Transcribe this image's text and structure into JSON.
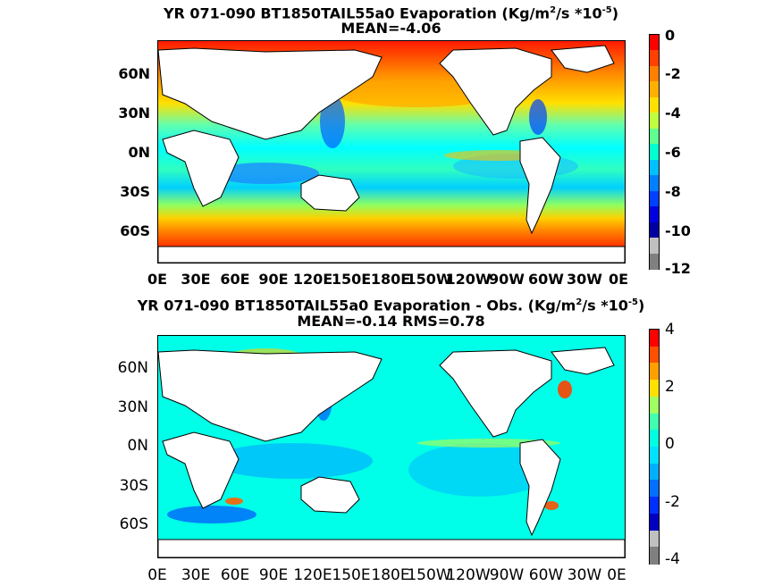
{
  "top": {
    "title_line1_pre": "YR 071-090 BT1850TAIL55a0  Evaporation (Kg/m",
    "title_sup1": "2",
    "title_mid": "/s *10",
    "title_sup2": "-5",
    "title_end": ")",
    "title_line2": "MEAN=-4.06",
    "lat_labels": [
      "60N",
      "30N",
      "0N",
      "30S",
      "60S"
    ],
    "lon_labels": [
      "0E",
      "30E",
      "60E",
      "90E",
      "120E",
      "150E",
      "180E",
      "150W",
      "120W",
      "90W",
      "60W",
      "30W",
      "0E"
    ],
    "colorbar_ticks": [
      "0",
      "-2",
      "-4",
      "-6",
      "-8",
      "-10",
      "-12"
    ],
    "colorbar_colors": [
      "#ff0000",
      "#ff4000",
      "#ff8000",
      "#ffb000",
      "#ffe000",
      "#c0ff40",
      "#60ff90",
      "#00ffd0",
      "#00c0ff",
      "#0080ff",
      "#0040ff",
      "#0000e0",
      "#0000a0",
      "#c0c0c0",
      "#808080"
    ]
  },
  "bottom": {
    "title_line1_pre": "YR 071-090 BT1850TAIL55a0 Evaporation - Obs. (Kg/m",
    "title_sup1": "2",
    "title_mid": "/s *10",
    "title_sup2": "-5",
    "title_end": ")",
    "title_line2": "MEAN=-0.14   RMS=0.78",
    "lat_labels": [
      "60N",
      "30N",
      "0N",
      "30S",
      "60S"
    ],
    "lon_labels": [
      "0E",
      "30E",
      "60E",
      "90E",
      "120E",
      "150E",
      "180E",
      "150W",
      "120W",
      "90W",
      "60W",
      "30W",
      "0E"
    ],
    "colorbar_ticks": [
      "4",
      "2",
      "0",
      "-2",
      "-4"
    ],
    "colorbar_colors": [
      "#ff0000",
      "#ff5000",
      "#ffa000",
      "#ffe000",
      "#a0ff60",
      "#40ffb0",
      "#00ffe0",
      "#00e0ff",
      "#00b0ff",
      "#0070ff",
      "#0030ff",
      "#0000c0",
      "#c0c0c0",
      "#808080"
    ]
  }
}
